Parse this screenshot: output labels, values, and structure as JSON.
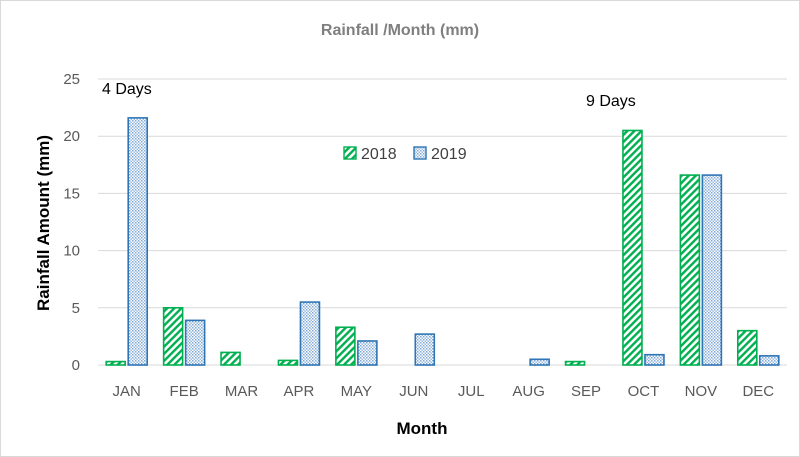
{
  "chart_data": {
    "type": "bar",
    "title": "Rainfall /Month (mm)",
    "xlabel": "Month",
    "ylabel": "Rainfall Amount (mm)",
    "ylim": [
      0,
      25
    ],
    "yticks": [
      0,
      5,
      10,
      15,
      20,
      25
    ],
    "grid": true,
    "legend_position": "top-center",
    "categories": [
      "JAN",
      "FEB",
      "MAR",
      "APR",
      "MAY",
      "JUN",
      "JUL",
      "AUG",
      "SEP",
      "OCT",
      "NOV",
      "DEC"
    ],
    "series": [
      {
        "name": "2018",
        "color": "#00b050",
        "pattern": "diagonal-stripes",
        "values": [
          0.3,
          5.0,
          1.1,
          0.4,
          3.3,
          0,
          0,
          0,
          0.3,
          20.5,
          16.6,
          3.0
        ]
      },
      {
        "name": "2019",
        "color": "#2e75b6",
        "pattern": "dots",
        "values": [
          21.6,
          3.9,
          0,
          5.5,
          2.1,
          2.7,
          0,
          0.5,
          0,
          0.9,
          16.6,
          0.8
        ]
      }
    ],
    "annotations": [
      {
        "text": "4 Days",
        "category": "JAN"
      },
      {
        "text": "9 Days",
        "category": "SEP"
      }
    ]
  }
}
